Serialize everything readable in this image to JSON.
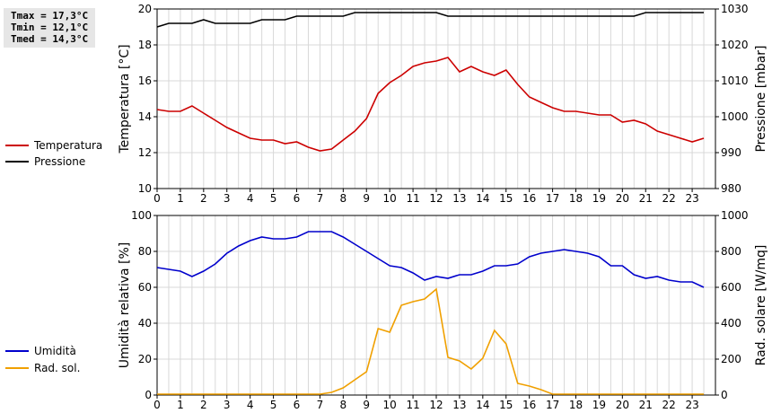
{
  "stats": {
    "tmax": "Tmax = 17,3°C",
    "tmin": "Tmin = 12,1°C",
    "tmed": "Tmed = 14,3°C"
  },
  "legend_top": [
    {
      "label": "Temperatura",
      "color": "#cc0000"
    },
    {
      "label": "Pressione",
      "color": "#000000"
    }
  ],
  "legend_bottom": [
    {
      "label": "Umidità",
      "color": "#0000cc"
    },
    {
      "label": "Rad. sol.",
      "color": "#f0a000"
    }
  ],
  "chart_data": [
    {
      "type": "line",
      "xlim": [
        0,
        24
      ],
      "x_ticks": [
        "0",
        "1",
        "2",
        "3",
        "4",
        "5",
        "6",
        "7",
        "8",
        "9",
        "10",
        "11",
        "12",
        "13",
        "14",
        "15",
        "16",
        "17",
        "18",
        "19",
        "20",
        "21",
        "22",
        "23"
      ],
      "ylabel": "Temperatura [°C]",
      "ylim": [
        10,
        20
      ],
      "y_ticks": [
        "10",
        "12",
        "14",
        "16",
        "18",
        "20"
      ],
      "y2label": "Pressione [mbar]",
      "y2lim": [
        980,
        1030
      ],
      "y2_ticks": [
        "980",
        "990",
        "1000",
        "1010",
        "1020",
        "1030"
      ],
      "grid": true,
      "series": [
        {
          "name": "Temperatura",
          "axis": "left",
          "color": "#cc0000",
          "x": [
            0,
            0.5,
            1,
            1.5,
            2,
            2.5,
            3,
            3.5,
            4,
            4.5,
            5,
            5.5,
            6,
            6.5,
            7,
            7.5,
            8,
            8.5,
            9,
            9.5,
            10,
            10.5,
            11,
            11.5,
            12,
            12.5,
            13,
            13.5,
            14,
            14.5,
            15,
            15.5,
            16,
            16.5,
            17,
            17.5,
            18,
            18.5,
            19,
            19.5,
            20,
            20.5,
            21,
            21.5,
            22,
            22.5,
            23,
            23.5
          ],
          "y": [
            14.4,
            14.3,
            14.3,
            14.6,
            14.2,
            13.8,
            13.4,
            13.1,
            12.8,
            12.7,
            12.7,
            12.5,
            12.6,
            12.3,
            12.1,
            12.2,
            12.7,
            13.2,
            13.9,
            15.3,
            15.9,
            16.3,
            16.8,
            17.0,
            17.1,
            17.3,
            16.5,
            16.8,
            16.5,
            16.3,
            16.6,
            15.8,
            15.1,
            14.8,
            14.5,
            14.3,
            14.3,
            14.2,
            14.1,
            14.1,
            13.7,
            13.8,
            13.6,
            13.2,
            13.0,
            12.8,
            12.6,
            12.8
          ]
        },
        {
          "name": "Pressione",
          "axis": "right",
          "color": "#000000",
          "x": [
            0,
            0.5,
            1,
            1.5,
            2,
            2.5,
            3,
            3.5,
            4,
            4.5,
            5,
            5.5,
            6,
            6.5,
            7,
            7.5,
            8,
            8.5,
            9,
            9.5,
            10,
            10.5,
            11,
            11.5,
            12,
            12.5,
            13,
            13.5,
            14,
            14.5,
            15,
            15.5,
            16,
            16.5,
            17,
            17.5,
            18,
            18.5,
            19,
            19.5,
            20,
            20.5,
            21,
            21.5,
            22,
            22.5,
            23,
            23.5
          ],
          "y": [
            1025,
            1026,
            1026,
            1026,
            1027,
            1026,
            1026,
            1026,
            1026,
            1027,
            1027,
            1027,
            1028,
            1028,
            1028,
            1028,
            1028,
            1029,
            1029,
            1029,
            1029,
            1029,
            1029,
            1029,
            1029,
            1028,
            1028,
            1028,
            1028,
            1028,
            1028,
            1028,
            1028,
            1028,
            1028,
            1028,
            1028,
            1028,
            1028,
            1028,
            1028,
            1028,
            1029,
            1029,
            1029,
            1029,
            1029,
            1029
          ]
        }
      ]
    },
    {
      "type": "line",
      "xlim": [
        0,
        24
      ],
      "x_ticks": [
        "0",
        "1",
        "2",
        "3",
        "4",
        "5",
        "6",
        "7",
        "8",
        "9",
        "10",
        "11",
        "12",
        "13",
        "14",
        "15",
        "16",
        "17",
        "18",
        "19",
        "20",
        "21",
        "22",
        "23"
      ],
      "ylabel": "Umidità relativa [%]",
      "ylim": [
        0,
        100
      ],
      "y_ticks": [
        "0",
        "20",
        "40",
        "60",
        "80",
        "100"
      ],
      "y2label": "Rad. solare [W/mq]",
      "y2lim": [
        0,
        1000
      ],
      "y2_ticks": [
        "0",
        "200",
        "400",
        "600",
        "800",
        "1000"
      ],
      "grid": true,
      "series": [
        {
          "name": "Umidità",
          "axis": "left",
          "color": "#0000cc",
          "x": [
            0,
            0.5,
            1,
            1.5,
            2,
            2.5,
            3,
            3.5,
            4,
            4.5,
            5,
            5.5,
            6,
            6.5,
            7,
            7.5,
            8,
            8.5,
            9,
            9.5,
            10,
            10.5,
            11,
            11.5,
            12,
            12.5,
            13,
            13.5,
            14,
            14.5,
            15,
            15.5,
            16,
            16.5,
            17,
            17.5,
            18,
            18.5,
            19,
            19.5,
            20,
            20.5,
            21,
            21.5,
            22,
            22.5,
            23,
            23.5
          ],
          "y": [
            71,
            70,
            69,
            66,
            69,
            73,
            79,
            83,
            86,
            88,
            87,
            87,
            88,
            91,
            91,
            91,
            88,
            84,
            80,
            76,
            72,
            71,
            68,
            64,
            66,
            65,
            67,
            67,
            69,
            72,
            72,
            73,
            77,
            79,
            80,
            81,
            80,
            79,
            77,
            72,
            72,
            67,
            65,
            66,
            64,
            63,
            63,
            60
          ]
        },
        {
          "name": "Rad. sol.",
          "axis": "right",
          "color": "#f0a000",
          "x": [
            0,
            0.5,
            1,
            1.5,
            2,
            2.5,
            3,
            3.5,
            4,
            4.5,
            5,
            5.5,
            6,
            6.5,
            7,
            7.5,
            8,
            8.5,
            9,
            9.5,
            10,
            10.5,
            11,
            11.5,
            12,
            12.5,
            13,
            13.5,
            14,
            14.5,
            15,
            15.5,
            16,
            16.5,
            17,
            17.5,
            18,
            18.5,
            19,
            19.5,
            20,
            20.5,
            21,
            21.5,
            22,
            22.5,
            23,
            23.5
          ],
          "y": [
            5,
            5,
            5,
            5,
            5,
            5,
            5,
            5,
            5,
            5,
            5,
            5,
            5,
            5,
            5,
            15,
            40,
            85,
            130,
            370,
            350,
            500,
            520,
            535,
            590,
            210,
            190,
            145,
            205,
            360,
            285,
            65,
            50,
            30,
            5,
            5,
            5,
            5,
            5,
            5,
            5,
            5,
            5,
            5,
            5,
            5,
            5,
            5
          ]
        }
      ]
    }
  ]
}
